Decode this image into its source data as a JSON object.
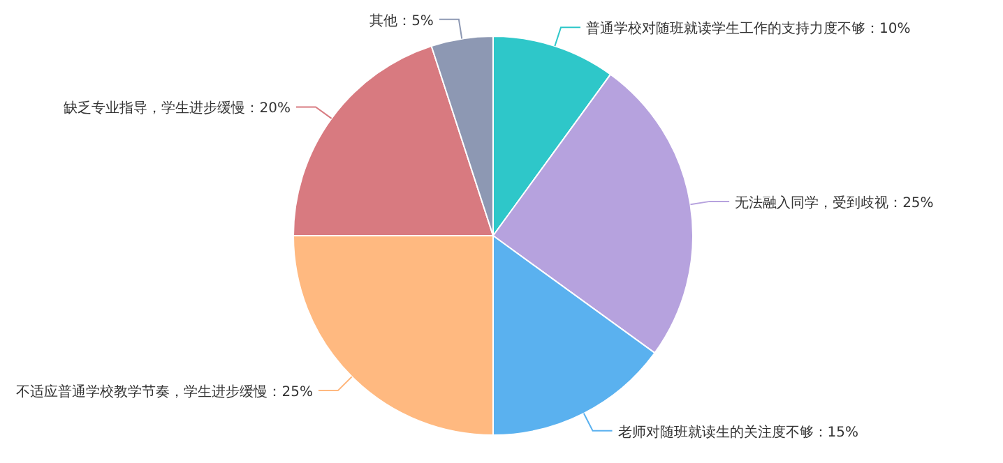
{
  "chart_data": {
    "type": "pie",
    "categories": [
      "普通学校对随班就读学生工作的支持力度不够",
      "无法融入同学，受到歧视",
      "老师对随班就读生的关注度不够",
      "不适应普通学校教学节奏，学生进步缓慢",
      "缺乏专业指导，学生进步缓慢",
      "其他"
    ],
    "values": [
      10,
      25,
      15,
      25,
      20,
      5
    ],
    "value_labels": [
      "10%",
      "25%",
      "15%",
      "25%",
      "20%",
      "5%"
    ],
    "colors": [
      "#2ec7c9",
      "#b6a2de",
      "#5ab1ef",
      "#ffb980",
      "#d87a80",
      "#8d98b3"
    ]
  }
}
